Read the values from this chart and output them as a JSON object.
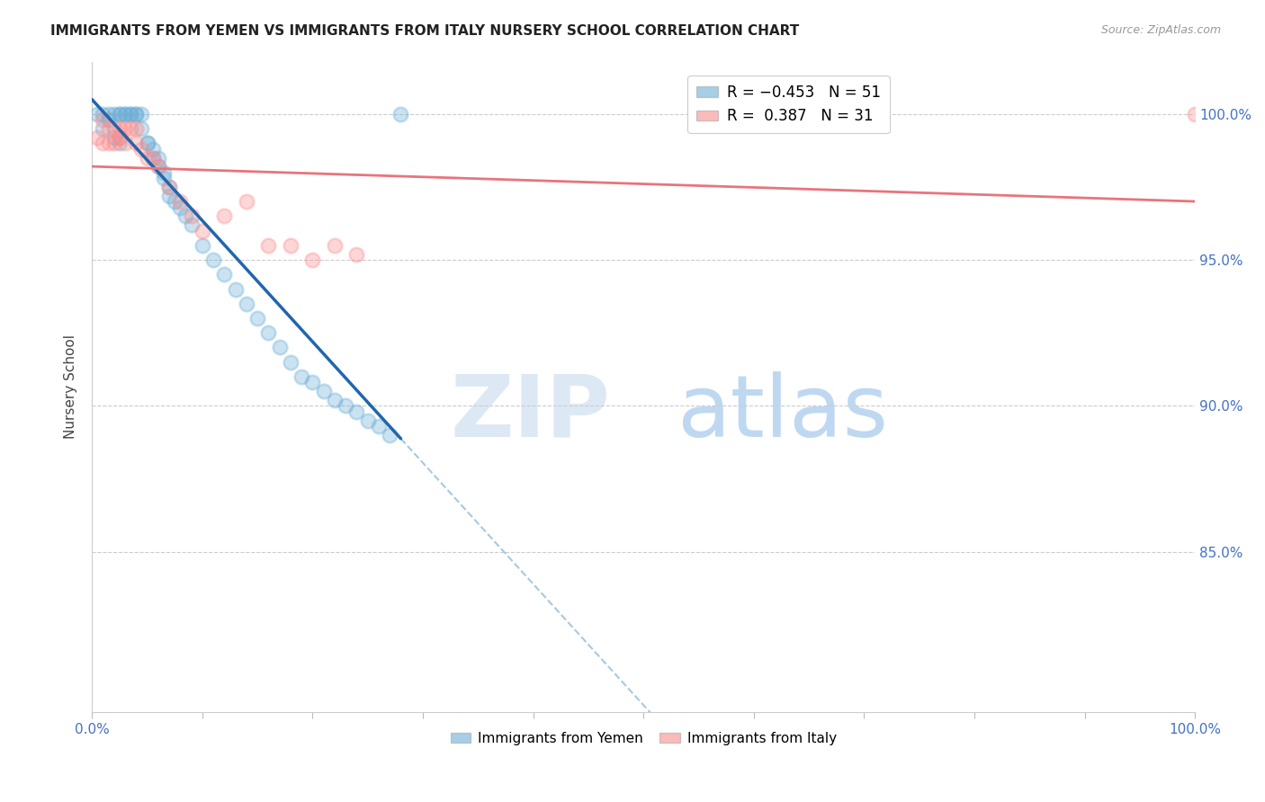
{
  "title": "IMMIGRANTS FROM YEMEN VS IMMIGRANTS FROM ITALY NURSERY SCHOOL CORRELATION CHART",
  "source": "Source: ZipAtlas.com",
  "ylabel": "Nursery School",
  "x_range": [
    0.0,
    100.0
  ],
  "y_range": [
    79.5,
    101.8
  ],
  "blue_color": "#6baed6",
  "pink_color": "#fc8d8d",
  "trend_blue_solid_color": "#2166ac",
  "trend_blue_dash_color": "#92bcd8",
  "trend_pink_color": "#e8747c",
  "ytick_vals": [
    85.0,
    90.0,
    95.0,
    100.0
  ],
  "ytick_labels": [
    "85.0%",
    "90.0%",
    "95.0%",
    "100.0%"
  ],
  "legend_entries": [
    "R = −0.453   N = 51",
    "R =  0.387   N = 31"
  ],
  "bottom_legend": [
    "Immigrants from Yemen",
    "Immigrants from Italy"
  ],
  "yemen_x": [
    0.5,
    1.0,
    1.5,
    2.0,
    2.5,
    2.5,
    3.0,
    3.0,
    3.5,
    3.5,
    4.0,
    4.0,
    4.5,
    4.5,
    5.0,
    5.0,
    5.5,
    5.5,
    6.0,
    6.0,
    6.5,
    6.5,
    7.0,
    7.0,
    7.5,
    8.0,
    8.5,
    9.0,
    10.0,
    11.0,
    12.0,
    13.0,
    14.0,
    15.0,
    16.0,
    17.0,
    18.0,
    19.0,
    20.0,
    21.0,
    22.0,
    23.0,
    24.0,
    25.0,
    26.0,
    27.0,
    1.0,
    1.5,
    2.0,
    2.5,
    28.0
  ],
  "yemen_y": [
    100.0,
    100.0,
    100.0,
    100.0,
    100.0,
    100.0,
    100.0,
    100.0,
    100.0,
    100.0,
    100.0,
    100.0,
    100.0,
    99.5,
    99.0,
    99.0,
    98.8,
    98.5,
    98.5,
    98.2,
    98.0,
    97.8,
    97.5,
    97.2,
    97.0,
    96.8,
    96.5,
    96.2,
    95.5,
    95.0,
    94.5,
    94.0,
    93.5,
    93.0,
    92.5,
    92.0,
    91.5,
    91.0,
    90.8,
    90.5,
    90.2,
    90.0,
    89.8,
    89.5,
    89.3,
    89.0,
    99.5,
    99.8,
    99.2,
    99.0,
    100.0
  ],
  "italy_x": [
    0.5,
    1.0,
    1.5,
    2.0,
    2.5,
    2.5,
    3.0,
    3.5,
    4.0,
    4.0,
    4.5,
    5.0,
    5.5,
    6.0,
    7.0,
    8.0,
    9.0,
    10.0,
    12.0,
    14.0,
    16.0,
    18.0,
    20.0,
    22.0,
    24.0,
    1.0,
    1.5,
    2.0,
    2.5,
    3.0,
    100.0
  ],
  "italy_y": [
    99.2,
    99.0,
    99.0,
    99.0,
    99.2,
    99.5,
    99.5,
    99.5,
    99.5,
    99.0,
    98.8,
    98.5,
    98.5,
    98.2,
    97.5,
    97.0,
    96.5,
    96.0,
    96.5,
    97.0,
    95.5,
    95.5,
    95.0,
    95.5,
    95.2,
    99.8,
    99.5,
    99.5,
    99.2,
    99.0,
    100.0
  ]
}
